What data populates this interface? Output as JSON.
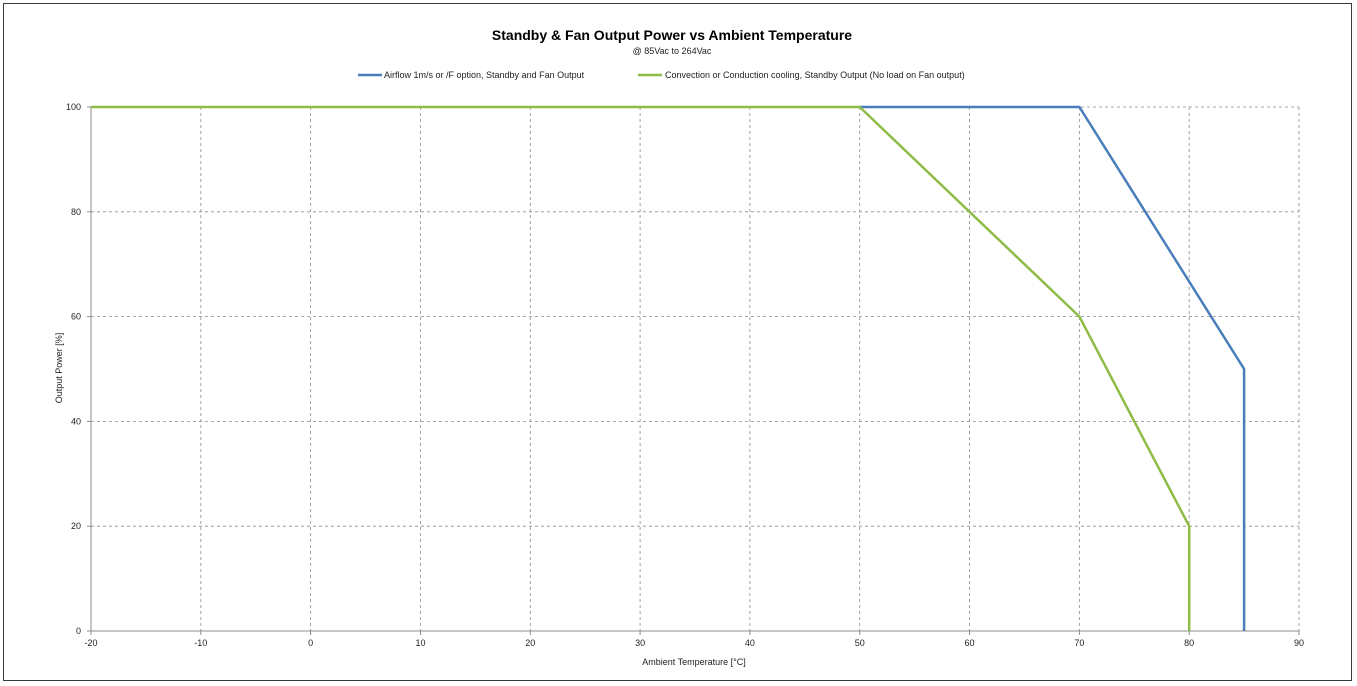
{
  "chart_data": {
    "type": "line",
    "title": "Standby & Fan Output Power vs Ambient Temperature",
    "subtitle": "@ 85Vac to 264Vac",
    "xlabel": "Ambient Temperature [°C]",
    "ylabel": "Output Power [%]",
    "xlim": [
      -20,
      90
    ],
    "ylim": [
      0,
      100
    ],
    "x_ticks": [
      -20,
      -10,
      0,
      10,
      20,
      30,
      40,
      50,
      60,
      70,
      80,
      90
    ],
    "y_ticks": [
      0,
      20,
      40,
      60,
      80,
      100
    ],
    "grid": true,
    "legend_position": "top",
    "series": [
      {
        "name": "Airflow 1m/s or /F option, Standby and Fan Output",
        "color": "#4a7ebb",
        "x": [
          50,
          70,
          85,
          85
        ],
        "y": [
          100,
          100,
          50,
          0
        ]
      },
      {
        "name": "Convection or Conduction cooling, Standby Output (No load on Fan output)",
        "color": "#8fbc47",
        "x": [
          -20,
          50,
          60,
          70,
          80,
          80
        ],
        "y": [
          100,
          100,
          80,
          60,
          20,
          0
        ]
      }
    ]
  }
}
